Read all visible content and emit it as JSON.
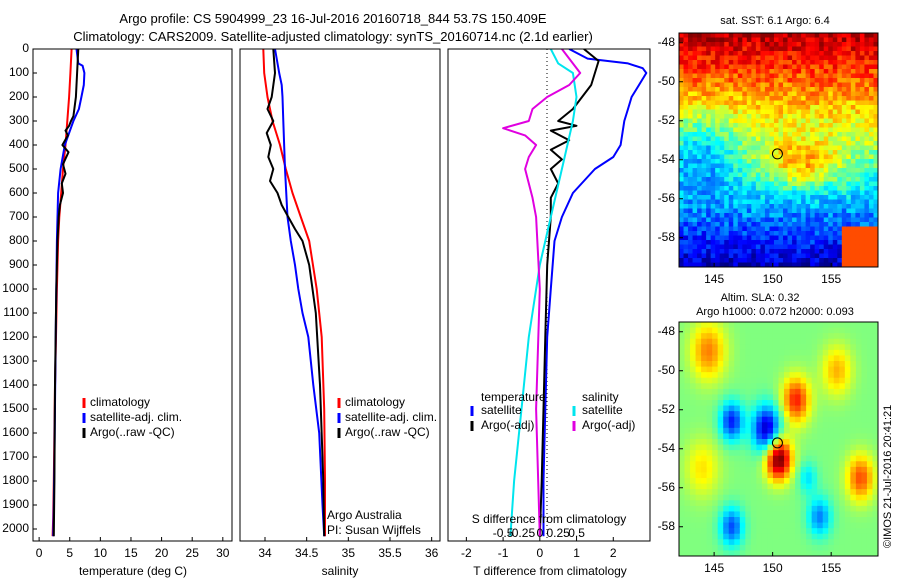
{
  "header": {
    "line1": "Argo profile: CS 5904999_23 16-Jul-2016 20160718_844 53.7S 150.409E",
    "line2": "Climatology: CARS2009. Satellite-adjusted climatology: synTS_20160714.nc (2.1d earlier)"
  },
  "colors": {
    "climatology": "#ff0000",
    "satellite": "#0000ff",
    "argo": "#000000",
    "satellite_salinity": "#00e5ee",
    "argo_salinity": "#e000e0"
  },
  "panels": {
    "temperature": {
      "xlabel": "temperature (deg C)",
      "legend": [
        "climatology",
        "satellite-adj. clim.",
        "Argo(..raw -QC)"
      ]
    },
    "salinity": {
      "xlabel": "salinity",
      "legend": [
        "climatology",
        "satellite-adj. clim.",
        "Argo(..raw -QC)"
      ],
      "annotation": [
        "Argo Australia",
        "PI: Susan Wijffels"
      ]
    },
    "difference": {
      "xlabel": "T difference from climatology",
      "top_label": "S difference from climatology",
      "legend_temp_title": "temperature",
      "legend_sal_title": "salinity",
      "legend_items": [
        "satellite",
        "Argo(-adj)"
      ]
    }
  },
  "maps": {
    "sst_title": "sat. SST: 6.1  Argo: 6.4",
    "sla_title1": "Altim. SLA: 0.32",
    "sla_title2": "Argo h1000: 0.072 h2000: 0.093",
    "lat_ticks": [
      "-48",
      "-50",
      "-52",
      "-54",
      "-56",
      "-58"
    ],
    "lon_ticks": [
      "145",
      "150",
      "155"
    ],
    "float_lon": 150.409,
    "float_lat": -53.7
  },
  "watermark": "©IMOS 21-Jul-2016 20:41:21",
  "chart_data": [
    {
      "type": "line",
      "title": "",
      "xlabel": "temperature (deg C)",
      "ylabel": "",
      "xlim": [
        -1,
        31.5
      ],
      "ylim": [
        2050,
        0
      ],
      "xticks": [
        0,
        5,
        10,
        15,
        20,
        25,
        30
      ],
      "yticks": [
        0,
        100,
        200,
        300,
        400,
        500,
        600,
        700,
        800,
        900,
        1000,
        1100,
        1200,
        1300,
        1400,
        1500,
        1600,
        1700,
        1800,
        1900,
        2000
      ],
      "series": [
        {
          "name": "climatology",
          "color": "#ff0000",
          "x": [
            5.3,
            5.1,
            4.9,
            4.6,
            4.3,
            3.9,
            3.6,
            3.3,
            3.1,
            2.9,
            2.75,
            2.6,
            2.5,
            2.4,
            2.3,
            2.2
          ],
          "y": [
            0,
            100,
            200,
            300,
            400,
            500,
            600,
            700,
            800,
            1000,
            1200,
            1400,
            1600,
            1800,
            1950,
            2030
          ]
        },
        {
          "name": "satellite-adj. clim.",
          "color": "#0000ff",
          "x": [
            6.1,
            6.4,
            7.1,
            7.4,
            7.3,
            6.9,
            6.5,
            5.6,
            4.2,
            3.5,
            3.1,
            2.9,
            2.7,
            2.55,
            2.4,
            2.3
          ],
          "y": [
            0,
            60,
            70,
            100,
            150,
            200,
            250,
            300,
            400,
            500,
            600,
            800,
            1200,
            1600,
            1900,
            2030
          ]
        },
        {
          "name": "Argo(..raw -QC)",
          "color": "#000000",
          "x": [
            6.4,
            6.2,
            6.0,
            5.6,
            5.2,
            4.9,
            4.3,
            4.7,
            3.8,
            4.8,
            3.9,
            4.3,
            3.7,
            3.9,
            3.4,
            3.2,
            3.0,
            2.8,
            2.6,
            2.5,
            2.4
          ],
          "y": [
            0,
            100,
            200,
            280,
            300,
            320,
            340,
            360,
            400,
            430,
            480,
            520,
            560,
            600,
            650,
            700,
            800,
            1000,
            1400,
            1800,
            2030
          ]
        }
      ]
    },
    {
      "type": "line",
      "title": "",
      "xlabel": "salinity",
      "ylabel": "",
      "xlim": [
        33.7,
        36.1
      ],
      "ylim": [
        2050,
        0
      ],
      "xticks": [
        34,
        34.5,
        35,
        35.5,
        36
      ],
      "series": [
        {
          "name": "climatology",
          "color": "#ff0000",
          "x": [
            33.98,
            33.99,
            34.03,
            34.09,
            34.18,
            34.25,
            34.33,
            34.43,
            34.53,
            34.62,
            34.68,
            34.71,
            34.72,
            34.72
          ],
          "y": [
            0,
            100,
            200,
            300,
            400,
            500,
            600,
            700,
            800,
            1000,
            1200,
            1500,
            1800,
            2030
          ]
        },
        {
          "name": "satellite-adj. clim.",
          "color": "#0000ff",
          "x": [
            34.12,
            34.17,
            34.2,
            34.21,
            34.22,
            34.24,
            34.27,
            34.31,
            34.36,
            34.4,
            34.45,
            34.52,
            34.58,
            34.65,
            34.69,
            34.71
          ],
          "y": [
            0,
            100,
            150,
            200,
            300,
            500,
            700,
            800,
            900,
            1000,
            1100,
            1200,
            1400,
            1600,
            1900,
            2030
          ]
        },
        {
          "name": "Argo(..raw -QC)",
          "color": "#000000",
          "x": [
            34.1,
            34.12,
            34.08,
            34.03,
            34.1,
            34.02,
            34.07,
            34.04,
            34.1,
            34.06,
            34.15,
            34.2,
            34.28,
            34.36,
            34.45,
            34.53,
            34.61,
            34.66,
            34.7,
            34.71
          ],
          "y": [
            0,
            100,
            200,
            250,
            300,
            350,
            400,
            450,
            500,
            550,
            600,
            650,
            700,
            750,
            800,
            900,
            1100,
            1400,
            1800,
            2030
          ]
        }
      ]
    },
    {
      "type": "line",
      "title": "",
      "xlabel": "T difference from climatology",
      "ylabel": "",
      "xlim": [
        -2.5,
        3.0
      ],
      "ylim": [
        2050,
        0
      ],
      "xticks": [
        -2,
        -1,
        0,
        1,
        2
      ],
      "secondary_xlabel": "S difference from climatology",
      "secondary_xticks": [
        "-0.5",
        "-0.25",
        "0",
        "0.25",
        "0.5"
      ],
      "series": [
        {
          "name": "temperature satellite",
          "color": "#0000ff",
          "x": [
            0.8,
            1.3,
            2.4,
            2.8,
            2.9,
            2.7,
            2.5,
            2.4,
            2.3,
            2.2,
            2.0,
            1.5,
            0.9,
            0.6,
            0.4,
            0.3,
            0.2,
            0.15,
            0.1,
            0.1
          ],
          "y": [
            0,
            40,
            60,
            80,
            100,
            150,
            200,
            250,
            300,
            400,
            450,
            500,
            600,
            700,
            800,
            1000,
            1200,
            1500,
            1800,
            2030
          ]
        },
        {
          "name": "temperature Argo(-adj)",
          "color": "#000000",
          "x": [
            1.2,
            1.6,
            1.4,
            0.9,
            0.5,
            1.0,
            0.3,
            0.8,
            0.3,
            0.6,
            0.3,
            0.5,
            0.3,
            0.3,
            0.2,
            0.15,
            0.1,
            0.05,
            0.0
          ],
          "y": [
            0,
            50,
            150,
            250,
            300,
            320,
            340,
            380,
            420,
            460,
            500,
            560,
            620,
            700,
            900,
            1200,
            1500,
            1800,
            2030
          ]
        },
        {
          "name": "salinity satellite",
          "color": "#00e5ee",
          "x": [
            0.3,
            0.5,
            0.9,
            1.0,
            0.9,
            0.6,
            0.3,
            0.0,
            -0.3,
            -0.5,
            -0.7,
            -0.8
          ],
          "y": [
            0,
            60,
            100,
            200,
            300,
            500,
            700,
            900,
            1200,
            1500,
            1800,
            2030
          ]
        },
        {
          "name": "salinity Argo(-adj)",
          "color": "#e000e0",
          "x": [
            0.6,
            1.1,
            0.8,
            0.2,
            -0.2,
            -0.3,
            -1.0,
            -0.4,
            -0.1,
            -0.3,
            -0.4,
            -0.3,
            -0.2,
            -0.1,
            0.0,
            -0.1,
            0.0
          ],
          "y": [
            0,
            100,
            150,
            200,
            250,
            300,
            330,
            360,
            400,
            450,
            500,
            560,
            620,
            700,
            1000,
            1500,
            2030
          ]
        }
      ]
    },
    {
      "type": "heatmap",
      "title": "sat. SST: 6.1  Argo: 6.4",
      "xlabel": "",
      "ylabel": "",
      "xlim": [
        142,
        159
      ],
      "ylim": [
        -59.5,
        -47.5
      ],
      "xticks": [
        145,
        150,
        155
      ],
      "yticks": [
        -48,
        -50,
        -52,
        -54,
        -56,
        -58
      ],
      "marker": {
        "lon": 150.409,
        "lat": -53.7
      }
    },
    {
      "type": "heatmap",
      "title": "Altim. SLA: 0.32",
      "xlabel": "",
      "ylabel": "",
      "xlim": [
        142,
        159
      ],
      "ylim": [
        -59.5,
        -47.5
      ],
      "xticks": [
        145,
        150,
        155
      ],
      "yticks": [
        -48,
        -50,
        -52,
        -54,
        -56,
        -58
      ],
      "marker": {
        "lon": 150.409,
        "lat": -53.7
      }
    }
  ]
}
